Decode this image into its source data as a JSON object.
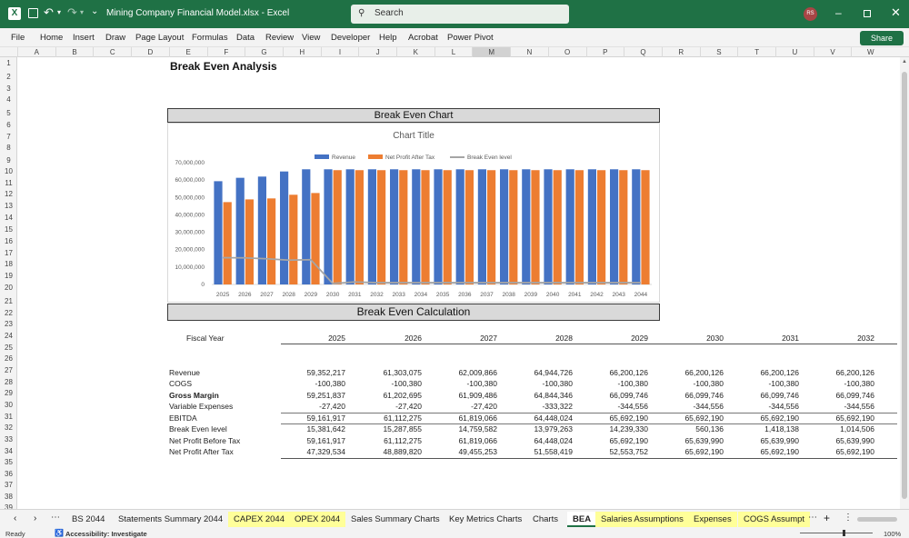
{
  "app": {
    "title": "Mining Company Financial Model.xlsx  -  Excel",
    "search_placeholder": "Search",
    "user_initials": "RS",
    "share_label": "Share"
  },
  "menu": [
    "File",
    "Home",
    "Insert",
    "Draw",
    "Page Layout",
    "Formulas",
    "Data",
    "Review",
    "View",
    "Developer",
    "Help",
    "Acrobat",
    "Power Pivot"
  ],
  "columns": [
    "A",
    "B",
    "C",
    "D",
    "E",
    "F",
    "G",
    "H",
    "I",
    "J",
    "K",
    "L",
    "M",
    "N",
    "O",
    "P",
    "Q",
    "R",
    "S",
    "T",
    "U",
    "V",
    "W"
  ],
  "rows": [
    "1",
    "2",
    "3",
    "4",
    "5",
    "6",
    "7",
    "8",
    "9",
    "10",
    "11",
    "12",
    "13",
    "14",
    "15",
    "16",
    "17",
    "18",
    "19",
    "20",
    "21",
    "22",
    "23",
    "24",
    "25",
    "26",
    "27",
    "28",
    "29",
    "30",
    "31",
    "32",
    "33",
    "34",
    "35",
    "36",
    "37",
    "38",
    "39"
  ],
  "sheet": {
    "title": "Break Even Analysis",
    "chart_band": "Break Even Chart",
    "calc_band": "Break Even Calculation",
    "fiscal_label": "Fiscal Year",
    "years": [
      "2025",
      "2026",
      "2027",
      "2028",
      "2029",
      "2030",
      "2031",
      "2032"
    ],
    "table": [
      {
        "label": "Revenue",
        "bold": false,
        "values": [
          "59,352,217",
          "61,303,075",
          "62,009,866",
          "64,944,726",
          "66,200,126",
          "66,200,126",
          "66,200,126",
          "66,200,126"
        ]
      },
      {
        "label": "COGS",
        "bold": false,
        "values": [
          "-100,380",
          "-100,380",
          "-100,380",
          "-100,380",
          "-100,380",
          "-100,380",
          "-100,380",
          "-100,380"
        ]
      },
      {
        "label": "Gross Margin",
        "bold": true,
        "values": [
          "59,251,837",
          "61,202,695",
          "61,909,486",
          "64,844,346",
          "66,099,746",
          "66,099,746",
          "66,099,746",
          "66,099,746"
        ]
      },
      {
        "label": "Variable Expenses",
        "bold": false,
        "values": [
          "-27,420",
          "-27,420",
          "-27,420",
          "-333,322",
          "-344,556",
          "-344,556",
          "-344,556",
          "-344,556"
        ]
      },
      {
        "label": "EBITDA",
        "bold": false,
        "values": [
          "59,161,917",
          "61,112,275",
          "61,819,066",
          "64,448,024",
          "65,692,190",
          "65,692,190",
          "65,692,190",
          "65,692,190"
        ]
      },
      {
        "label": "Break Even level",
        "bold": false,
        "values": [
          "15,381,642",
          "15,287,855",
          "14,759,582",
          "13,979,263",
          "14,239,330",
          "560,136",
          "1,418,138",
          "1,014,506"
        ]
      },
      {
        "label": "Net Profit Before Tax",
        "bold": false,
        "values": [
          "59,161,917",
          "61,112,275",
          "61,819,066",
          "64,448,024",
          "65,692,190",
          "65,639,990",
          "65,639,990",
          "65,639,990"
        ]
      },
      {
        "label": "Net Profit After Tax",
        "bold": false,
        "values": [
          "47,329,534",
          "48,889,820",
          "49,455,253",
          "51,558,419",
          "52,553,752",
          "65,692,190",
          "65,692,190",
          "65,692,190"
        ]
      }
    ]
  },
  "chart_data": {
    "type": "bar",
    "title": "Chart Title",
    "categories": [
      "2025",
      "2026",
      "2027",
      "2028",
      "2029",
      "2030",
      "2031",
      "2032",
      "2033",
      "2034",
      "2035",
      "2036",
      "2037",
      "2038",
      "2039",
      "2040",
      "2041",
      "2042",
      "2043",
      "2044"
    ],
    "ylim": [
      0,
      70000000
    ],
    "yticks": [
      "0",
      "10,000,000",
      "20,000,000",
      "30,000,000",
      "40,000,000",
      "50,000,000",
      "60,000,000",
      "70,000,000"
    ],
    "series": [
      {
        "name": "Revenue",
        "type": "bar",
        "color": "#4472c4",
        "values": [
          59352217,
          61303075,
          62009866,
          64944726,
          66200126,
          66200126,
          66200126,
          66200126,
          66200126,
          66200126,
          66200126,
          66200126,
          66200126,
          66200126,
          66200126,
          66200126,
          66200126,
          66200126,
          66200126,
          66200126
        ]
      },
      {
        "name": "Net Profit After Tax",
        "type": "bar",
        "color": "#ed7d31",
        "values": [
          47329534,
          48889820,
          49455253,
          51558419,
          52553752,
          65692190,
          65692190,
          65692190,
          65692190,
          65692190,
          65692190,
          65692190,
          65692190,
          65692190,
          65692190,
          65692190,
          65692190,
          65692190,
          65692190,
          65692190
        ]
      },
      {
        "name": "Break Even level",
        "type": "line",
        "color": "#a5a5a5",
        "values": [
          15381642,
          15287855,
          14759582,
          13979263,
          14239330,
          560136,
          1418138,
          1014506,
          1000000,
          1000000,
          1000000,
          1000000,
          1000000,
          1000000,
          1000000,
          1000000,
          1000000,
          1000000,
          1000000,
          1000000
        ]
      }
    ],
    "legend": "top"
  },
  "tabs": [
    {
      "label": "BS 2044",
      "style": "normal"
    },
    {
      "label": "Statements Summary 2044",
      "style": "normal"
    },
    {
      "label": "CAPEX 2044",
      "style": "yellow"
    },
    {
      "label": "OPEX 2044",
      "style": "yellow"
    },
    {
      "label": "Sales Summary Charts",
      "style": "normal"
    },
    {
      "label": "Key Metrics Charts",
      "style": "normal"
    },
    {
      "label": "Charts",
      "style": "normal"
    },
    {
      "label": "BEA",
      "style": "active"
    },
    {
      "label": "Salaries Assumptions",
      "style": "yellow"
    },
    {
      "label": "Expenses",
      "style": "yellow"
    },
    {
      "label": "COGS Assumpt",
      "style": "yellow"
    }
  ],
  "status": {
    "ready": "Ready",
    "accessibility": "Accessibility: Investigate",
    "zoom": "100%"
  }
}
